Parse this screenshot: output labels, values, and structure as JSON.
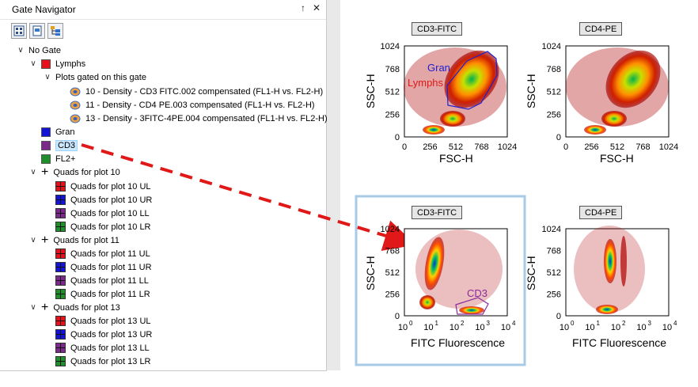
{
  "panel": {
    "title": "Gate Navigator",
    "pin_glyph": "↑",
    "close_glyph": "✕"
  },
  "toolbar": {
    "buttons": [
      "toolbar-button-1",
      "toolbar-button-2",
      "toolbar-button-3"
    ]
  },
  "tree": {
    "root": "No Gate",
    "lymphs": "Lymphs",
    "plots_gated": "Plots gated on this gate",
    "plots": [
      "10 - Density - CD3 FITC.002 compensated (FL1-H vs. FL2-H)",
      "11 - Density - CD4 PE.003 compensated (FL1-H vs. FL2-H)",
      "13 - Density - 3FITC-4PE.004 compensated (FL1-H vs. FL2-H)"
    ],
    "gran": "Gran",
    "cd3": "CD3",
    "fl2": "FL2+",
    "quad_groups": [
      {
        "label": "Quads for plot 10",
        "items": [
          "Quads for plot 10 UL",
          "Quads for plot 10 UR",
          "Quads for plot 10 LL",
          "Quads for plot 10 LR"
        ]
      },
      {
        "label": "Quads for plot 11",
        "items": [
          "Quads for plot 11 UL",
          "Quads for plot 11 UR",
          "Quads for plot 11 LL",
          "Quads for plot 11 LR"
        ]
      },
      {
        "label": "Quads for plot 13",
        "items": [
          "Quads for plot 13 UL",
          "Quads for plot 13 UR",
          "Quads for plot 13 LL",
          "Quads for plot 13 LR"
        ]
      }
    ]
  },
  "colors": {
    "red": "#e8101a",
    "blue": "#1414d8",
    "purple": "#7b2a8c",
    "green": "#1f8f2a",
    "highlight": "#a7cbe6",
    "arrow": "#e01818"
  },
  "plots": {
    "p1": {
      "title": "CD3-FITC",
      "xlabel": "FSC-H",
      "ylabel": "SSC-H",
      "gate_gran": "Gran",
      "gate_lymphs": "Lymphs"
    },
    "p2": {
      "title": "CD4-PE",
      "xlabel": "FSC-H",
      "ylabel": "SSC-H"
    },
    "p3": {
      "title": "CD3-FITC",
      "xlabel": "FITC Fluorescence",
      "ylabel": "SSC-H",
      "gate_cd3": "CD3"
    },
    "p4": {
      "title": "CD4-PE",
      "xlabel": "FITC Fluorescence",
      "ylabel": "SSC-H"
    },
    "lin_y_ticks": [
      "1024",
      "768",
      "512",
      "256",
      "0"
    ],
    "lin_x_ticks": [
      "0",
      "256",
      "512",
      "768",
      "1024"
    ],
    "log_x_base": "10",
    "log_x_exps": [
      "0",
      "1",
      "2",
      "3",
      "4"
    ]
  }
}
